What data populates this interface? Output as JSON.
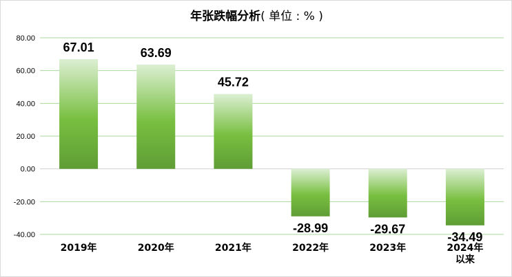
{
  "chart_data": {
    "type": "bar",
    "title": "年张跌幅分析",
    "title_unit": "( 单位 : % )",
    "categories": [
      "2019年",
      "2020年",
      "2021年",
      "2022年",
      "2023年",
      "2024年以来"
    ],
    "values": [
      67.01,
      63.69,
      45.72,
      -28.99,
      -29.67,
      -34.49
    ],
    "data_labels": [
      "67.01",
      "63.69",
      "45.72",
      "-28.99",
      "-29.67",
      "-34.49"
    ],
    "xlabel": "",
    "ylabel": "",
    "ylim": [
      -40,
      80
    ],
    "y_ticks": [
      "80.00",
      "60.00",
      "40.00",
      "20.00",
      "0.00",
      "-20.00",
      "-40.00"
    ],
    "grid": true,
    "legend": "none",
    "colors": {
      "bar_light": "#dcefd3",
      "bar_mid": "#78bf40",
      "bar_dark": "#5f9d35",
      "grid": "#a9d99b",
      "zero_line": "#d0d0d0"
    }
  }
}
